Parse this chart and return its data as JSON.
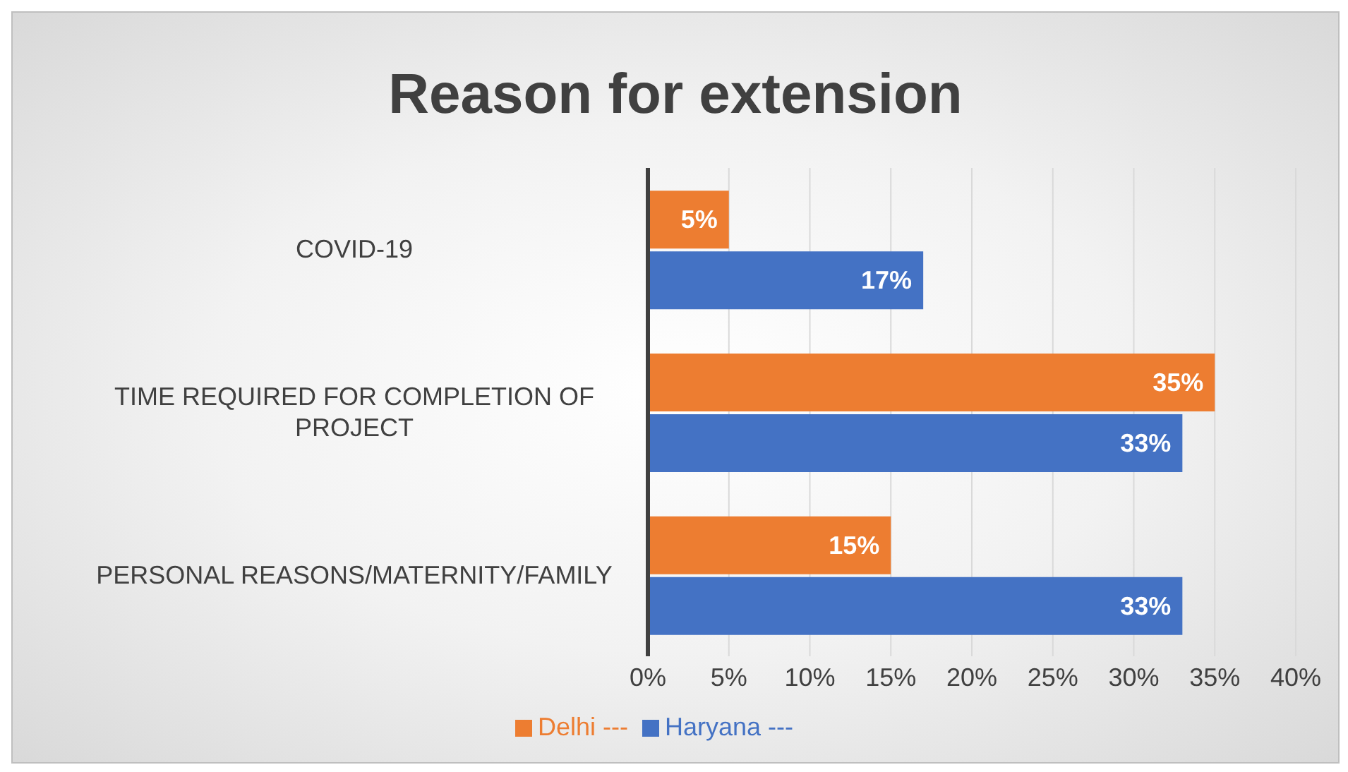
{
  "chart_data": {
    "type": "bar",
    "orientation": "horizontal",
    "title": "Reason for extension",
    "categories": [
      "COVID-19",
      "TIME REQUIRED FOR COMPLETION OF PROJECT",
      "PERSONAL REASONS/MATERNITY/FAMILY"
    ],
    "series": [
      {
        "name": "Delhi ---",
        "color": "#ed7d31",
        "values": [
          5,
          35,
          15
        ],
        "value_labels": [
          "5%",
          "35%",
          "15%"
        ]
      },
      {
        "name": "Haryana ---",
        "color": "#4472c4",
        "values": [
          17,
          33,
          33
        ],
        "value_labels": [
          "17%",
          "33%",
          "33%"
        ]
      }
    ],
    "xlim": [
      0,
      40
    ],
    "xticks": [
      {
        "value": 0,
        "label": "0%"
      },
      {
        "value": 5,
        "label": "5%"
      },
      {
        "value": 10,
        "label": "10%"
      },
      {
        "value": 15,
        "label": "15%"
      },
      {
        "value": 20,
        "label": "20%"
      },
      {
        "value": 25,
        "label": "25%"
      },
      {
        "value": 30,
        "label": "30%"
      },
      {
        "value": 35,
        "label": "35%"
      },
      {
        "value": 40,
        "label": "40%"
      }
    ],
    "grid": "x",
    "legend": "bottom"
  }
}
